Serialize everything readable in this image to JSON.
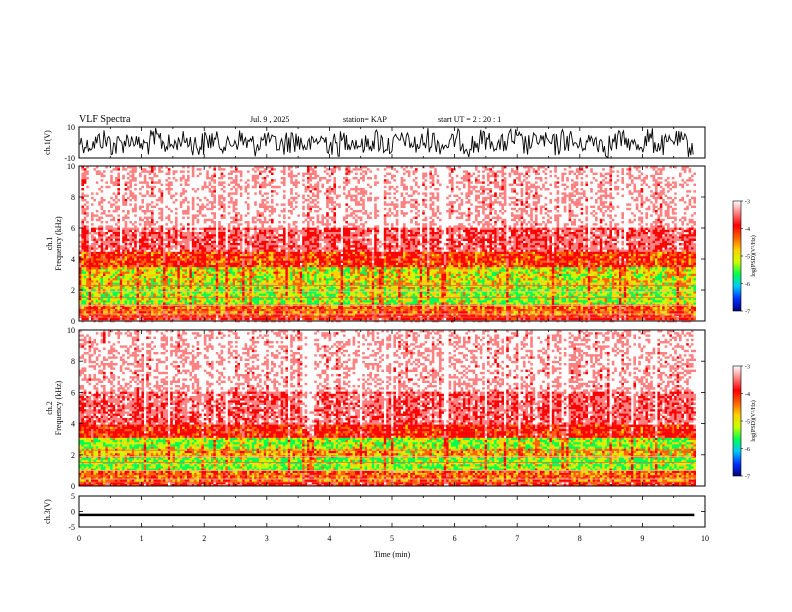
{
  "header": {
    "title": "VLF Spectra",
    "date": "Jul. 9 , 2025",
    "station": "station= KAP",
    "start": "start UT =  2 : 20 : 1"
  },
  "chart_data": [
    {
      "type": "line",
      "name": "ch1-waveform",
      "ylabel": "ch.1(V)",
      "ylim": [
        -10,
        10
      ],
      "yticks": [
        "10",
        "-10"
      ],
      "xlim": [
        0,
        10
      ],
      "data_end_min": 9.83
    },
    {
      "type": "heatmap",
      "name": "ch1-spectrogram",
      "ylabel": "ch.1 Frequency (kHz)",
      "ylim": [
        0,
        10
      ],
      "yticks": [
        "0",
        "2",
        "4",
        "6",
        "8",
        "10"
      ],
      "xlim": [
        0,
        10
      ],
      "data_end_min": 9.83,
      "band_profile": [
        {
          "f_khz": [
            0,
            0.3
          ],
          "level": 0.45
        },
        {
          "f_khz": [
            0.3,
            1.0
          ],
          "level": 0.62
        },
        {
          "f_khz": [
            1.0,
            2.0
          ],
          "level": 0.85
        },
        {
          "f_khz": [
            2.0,
            2.4
          ],
          "level": 0.8
        },
        {
          "f_khz": [
            2.4,
            3.5
          ],
          "level": 0.78
        },
        {
          "f_khz": [
            3.5,
            4.4
          ],
          "level": 0.55
        },
        {
          "f_khz": [
            4.4,
            6.0
          ],
          "level": 0.3
        },
        {
          "f_khz": [
            6.0,
            10.0
          ],
          "level": 0.12
        }
      ],
      "colorbar": {
        "label": "log(PSD)(V²/Hz)",
        "range": [
          -7,
          -3
        ],
        "ticks": [
          "-3",
          "-4",
          "-5",
          "-6",
          "-7"
        ],
        "colors": [
          "#000080",
          "#0030ff",
          "#00c8ff",
          "#00ff50",
          "#c8ff00",
          "#ffd000",
          "#ff6000",
          "#ff0000",
          "#ff8080",
          "#ffffff"
        ]
      }
    },
    {
      "type": "heatmap",
      "name": "ch2-spectrogram",
      "ylabel": "ch.2 Frequency (kHz)",
      "ylim": [
        0,
        10
      ],
      "yticks": [
        "0",
        "2",
        "4",
        "6",
        "8",
        "10"
      ],
      "xlim": [
        0,
        10
      ],
      "data_end_min": 9.83,
      "band_profile": [
        {
          "f_khz": [
            0,
            0.3
          ],
          "level": 0.45
        },
        {
          "f_khz": [
            0.3,
            1.0
          ],
          "level": 0.62
        },
        {
          "f_khz": [
            1.0,
            1.8
          ],
          "level": 0.88
        },
        {
          "f_khz": [
            1.8,
            2.4
          ],
          "level": 0.7
        },
        {
          "f_khz": [
            2.4,
            3.1
          ],
          "level": 0.85
        },
        {
          "f_khz": [
            3.1,
            4.0
          ],
          "level": 0.5
        },
        {
          "f_khz": [
            4.0,
            6.0
          ],
          "level": 0.28
        },
        {
          "f_khz": [
            6.0,
            10.0
          ],
          "level": 0.12
        }
      ],
      "colorbar": {
        "label": "log(PSD)(V²/Hz)",
        "range": [
          -7,
          -3
        ],
        "ticks": [
          "-3",
          "-4",
          "-5",
          "-6",
          "-7"
        ],
        "colors": [
          "#000080",
          "#0030ff",
          "#00c8ff",
          "#00ff50",
          "#c8ff00",
          "#ffd000",
          "#ff6000",
          "#ff0000",
          "#ff8080",
          "#ffffff"
        ]
      }
    },
    {
      "type": "line",
      "name": "ch3-waveform",
      "ylabel": "ch.3(V)",
      "ylim": [
        -5,
        5
      ],
      "yticks": [
        "5",
        "0",
        "-5"
      ],
      "xlim": [
        0,
        10
      ],
      "data_end_min": 9.83,
      "level_v": [
        -1.5,
        -0.7
      ]
    }
  ],
  "xaxis": {
    "label": "Time (min)",
    "ticks": [
      "0",
      "1",
      "2",
      "3",
      "4",
      "5",
      "6",
      "7",
      "8",
      "9",
      "10"
    ]
  }
}
